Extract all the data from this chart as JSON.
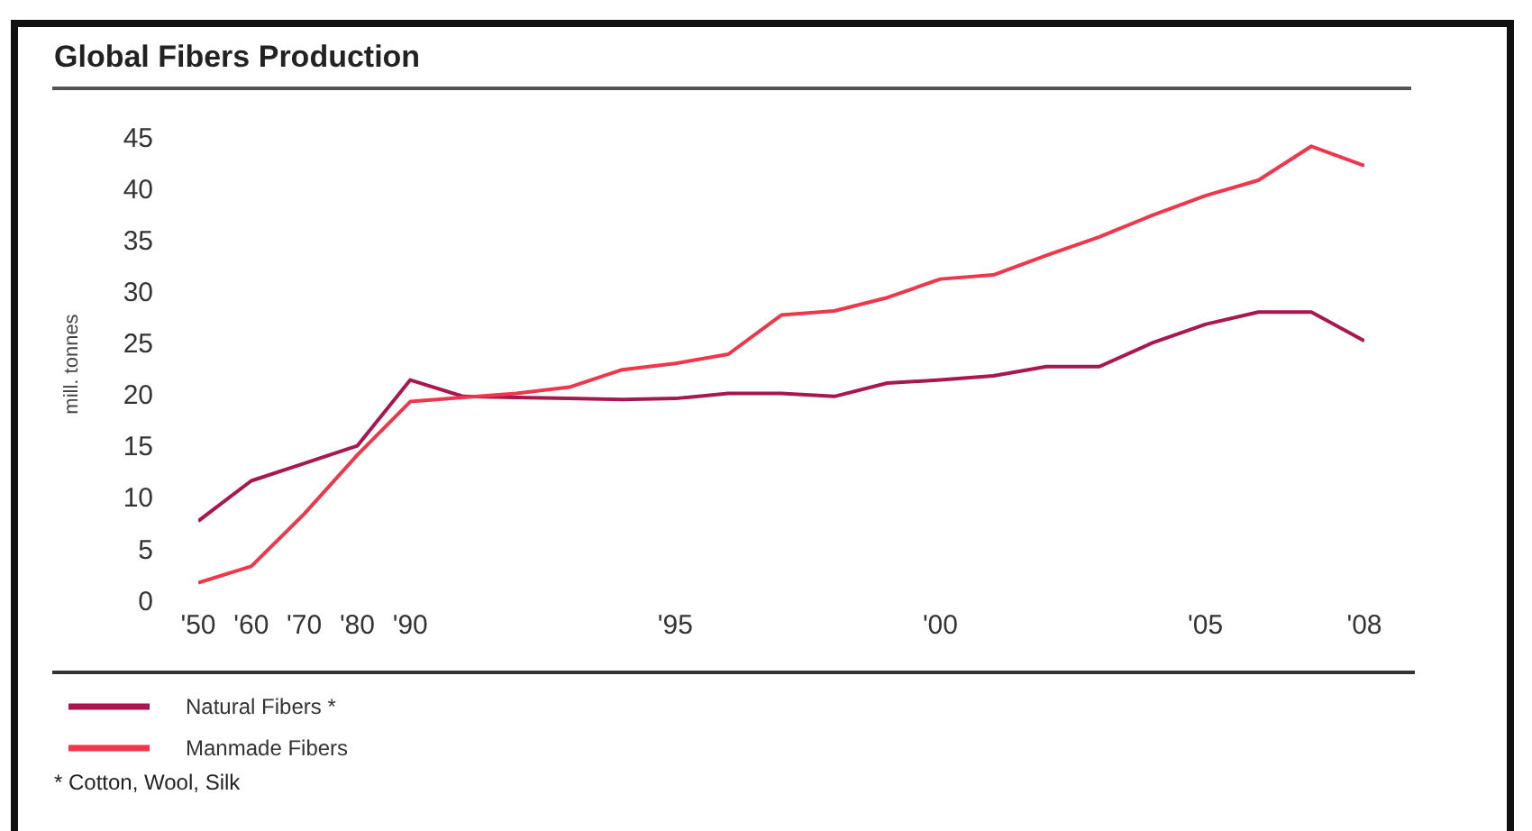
{
  "chart_data": {
    "type": "line",
    "title": "Global Fibers Production",
    "ylabel": "mill. tonnes",
    "categories": [
      "'50",
      "'60",
      "'70",
      "'80",
      "'90",
      null,
      null,
      null,
      null,
      "'95",
      null,
      null,
      null,
      null,
      "'00",
      null,
      null,
      null,
      null,
      "'05",
      null,
      null,
      "'08"
    ],
    "series": [
      {
        "name": "Natural Fibers *",
        "color": "#a8174f",
        "values": [
          7.7,
          11.6,
          13.3,
          15.0,
          21.4,
          19.8,
          19.7,
          19.6,
          19.5,
          19.6,
          20.1,
          20.1,
          19.8,
          21.1,
          21.4,
          21.8,
          22.7,
          22.7,
          25.0,
          26.8,
          28.0,
          28.0,
          25.2
        ]
      },
      {
        "name": "Manmade Fibers",
        "color": "#f0364a",
        "values": [
          1.7,
          3.3,
          8.4,
          14.1,
          19.3,
          19.7,
          20.1,
          20.7,
          22.4,
          23.0,
          23.9,
          27.7,
          28.1,
          29.4,
          31.2,
          31.6,
          33.5,
          35.3,
          37.4,
          39.3,
          40.8,
          44.1,
          42.2
        ]
      }
    ],
    "ylim": [
      0,
      45
    ],
    "yticks": [
      0,
      5,
      10,
      15,
      20,
      25,
      30,
      35,
      40,
      45
    ],
    "grid": false,
    "legend": "bottom left",
    "marker": "none",
    "line_style": "solid",
    "annotations": [
      "* Cotton, Wool, Silk"
    ]
  }
}
